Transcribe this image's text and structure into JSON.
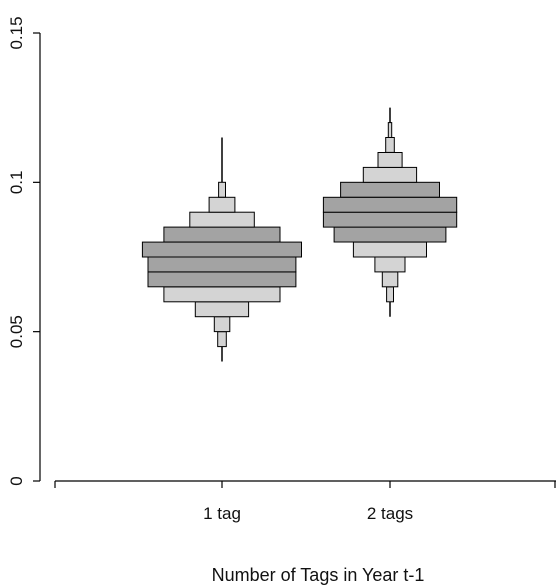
{
  "chart_data": {
    "type": "bar",
    "subtype": "beanplot-style stacked horizontal bands",
    "title": "",
    "xlabel": "Number of Tags in Year t-1",
    "ylabel": "",
    "categories": [
      "1 tag",
      "2 tags"
    ],
    "ylim": [
      0,
      0.15
    ],
    "yticks": [
      0,
      0.05,
      0.1,
      0.15
    ],
    "ytick_labels": [
      "0",
      "0.05",
      "0.1",
      "0.15"
    ],
    "grid": false,
    "legend": "none",
    "colors": {
      "light": "#d4d4d4",
      "dark": "#a3a3a3",
      "stroke": "#000000"
    },
    "groups": [
      {
        "category": "1 tag",
        "whisker": [
          0.04,
          0.115
        ],
        "bands": [
          {
            "lo": 0.045,
            "hi": 0.05,
            "width": 0.1,
            "shade": "light"
          },
          {
            "lo": 0.05,
            "hi": 0.055,
            "width": 0.18,
            "shade": "light"
          },
          {
            "lo": 0.055,
            "hi": 0.06,
            "width": 0.62,
            "shade": "light"
          },
          {
            "lo": 0.06,
            "hi": 0.065,
            "width": 1.35,
            "shade": "light"
          },
          {
            "lo": 0.065,
            "hi": 0.07,
            "width": 1.72,
            "shade": "dark"
          },
          {
            "lo": 0.07,
            "hi": 0.075,
            "width": 1.72,
            "shade": "dark"
          },
          {
            "lo": 0.075,
            "hi": 0.08,
            "width": 1.85,
            "shade": "dark"
          },
          {
            "lo": 0.08,
            "hi": 0.085,
            "width": 1.35,
            "shade": "dark"
          },
          {
            "lo": 0.085,
            "hi": 0.09,
            "width": 0.75,
            "shade": "light"
          },
          {
            "lo": 0.09,
            "hi": 0.095,
            "width": 0.3,
            "shade": "light"
          },
          {
            "lo": 0.095,
            "hi": 0.1,
            "width": 0.08,
            "shade": "light"
          }
        ]
      },
      {
        "category": "2 tags",
        "whisker": [
          0.055,
          0.125
        ],
        "bands": [
          {
            "lo": 0.06,
            "hi": 0.065,
            "width": 0.08,
            "shade": "light"
          },
          {
            "lo": 0.065,
            "hi": 0.07,
            "width": 0.18,
            "shade": "light"
          },
          {
            "lo": 0.07,
            "hi": 0.075,
            "width": 0.35,
            "shade": "light"
          },
          {
            "lo": 0.075,
            "hi": 0.08,
            "width": 0.85,
            "shade": "light"
          },
          {
            "lo": 0.08,
            "hi": 0.085,
            "width": 1.3,
            "shade": "dark"
          },
          {
            "lo": 0.085,
            "hi": 0.09,
            "width": 1.55,
            "shade": "dark"
          },
          {
            "lo": 0.09,
            "hi": 0.095,
            "width": 1.55,
            "shade": "dark"
          },
          {
            "lo": 0.095,
            "hi": 0.1,
            "width": 1.15,
            "shade": "dark"
          },
          {
            "lo": 0.1,
            "hi": 0.105,
            "width": 0.62,
            "shade": "light"
          },
          {
            "lo": 0.105,
            "hi": 0.11,
            "width": 0.28,
            "shade": "light"
          },
          {
            "lo": 0.11,
            "hi": 0.115,
            "width": 0.1,
            "shade": "light"
          },
          {
            "lo": 0.115,
            "hi": 0.12,
            "width": 0.04,
            "shade": "light"
          }
        ]
      }
    ]
  }
}
